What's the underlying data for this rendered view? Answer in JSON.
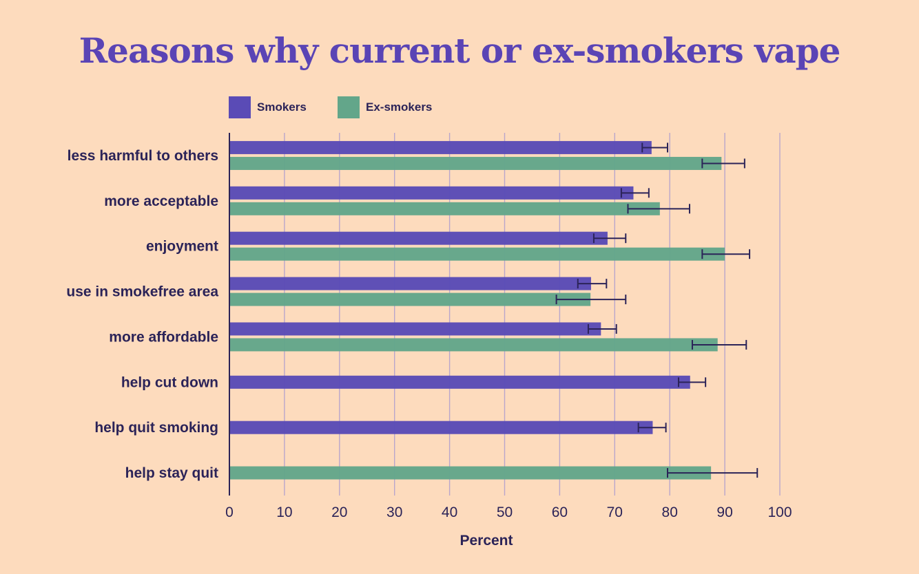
{
  "chart_data": {
    "type": "bar",
    "orientation": "horizontal",
    "title": "Reasons why current or ex-smokers vape",
    "xlabel": "Percent",
    "ylabel": "",
    "xlim": [
      0,
      100
    ],
    "xticks": [
      0,
      10,
      20,
      30,
      40,
      50,
      60,
      70,
      80,
      90,
      100
    ],
    "grid": "vertical",
    "legend_position": "top-left",
    "categories": [
      "less harmful to others",
      "more acceptable",
      "enjoyment",
      "use in smokefree area",
      "more affordable",
      "help cut down",
      "help quit smoking",
      "help stay quit"
    ],
    "series": [
      {
        "name": "Smokers",
        "color": "#5a4bb6",
        "values": [
          76.7,
          73.4,
          68.7,
          65.7,
          67.5,
          83.7,
          76.9,
          null
        ],
        "error_low": [
          75.0,
          71.2,
          66.2,
          63.3,
          65.2,
          81.6,
          74.3,
          null
        ],
        "error_high": [
          79.6,
          76.2,
          72.0,
          68.5,
          70.3,
          86.5,
          79.3,
          null
        ]
      },
      {
        "name": "Ex-smokers",
        "color": "#63a68a",
        "values": [
          89.4,
          78.2,
          90.0,
          65.6,
          88.7,
          null,
          null,
          87.5
        ],
        "error_low": [
          85.9,
          72.4,
          85.9,
          59.4,
          84.1,
          null,
          null,
          79.6
        ],
        "error_high": [
          93.6,
          83.6,
          94.5,
          72.0,
          93.9,
          null,
          null,
          95.9
        ]
      }
    ]
  }
}
